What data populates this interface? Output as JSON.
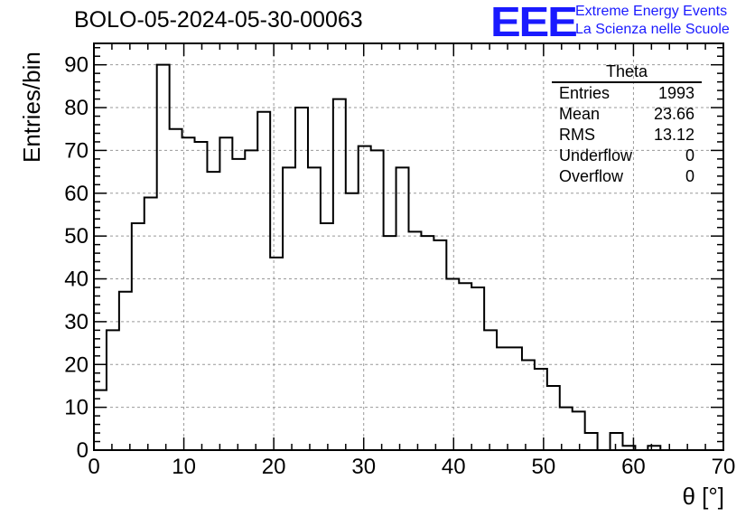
{
  "title": "BOLO-05-2024-05-30-00063",
  "logo": {
    "mark": "EEE",
    "line1": "Extreme Energy Events",
    "line2": "La Scienza nelle Scuole",
    "color": "#1a1aff"
  },
  "stats": {
    "title": "Theta",
    "rows": [
      {
        "label": "Entries",
        "value": "1993"
      },
      {
        "label": "Mean",
        "value": "23.66"
      },
      {
        "label": "RMS",
        "value": "13.12"
      },
      {
        "label": "Underflow",
        "value": "0"
      },
      {
        "label": "Overflow",
        "value": "0"
      }
    ]
  },
  "chart_data": {
    "type": "bar",
    "histogram": true,
    "title": "BOLO-05-2024-05-30-00063",
    "xlabel": "θ [°]",
    "ylabel": "Entries/bin",
    "xlim": [
      0,
      70
    ],
    "ylim": [
      0,
      95
    ],
    "bin_width": 1.4,
    "grid": true,
    "xticks": [
      0,
      10,
      20,
      30,
      40,
      50,
      60,
      70
    ],
    "yticks": [
      0,
      10,
      20,
      30,
      40,
      50,
      60,
      70,
      80,
      90
    ],
    "values": [
      14,
      28,
      37,
      53,
      59,
      90,
      75,
      73,
      72,
      65,
      73,
      68,
      70,
      79,
      45,
      66,
      80,
      66,
      53,
      82,
      60,
      71,
      70,
      50,
      66,
      51,
      50,
      49,
      40,
      39,
      38,
      28,
      24,
      24,
      21,
      19,
      15,
      10,
      9,
      4,
      0,
      4,
      1,
      0,
      1,
      0,
      0,
      0,
      0,
      0
    ]
  }
}
